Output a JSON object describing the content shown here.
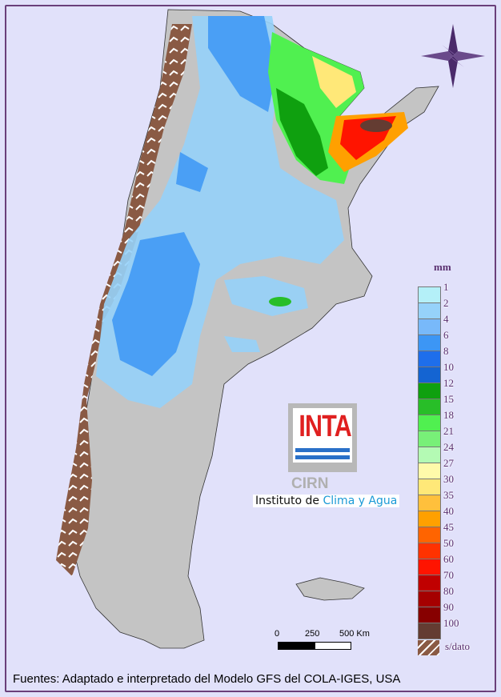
{
  "legend": {
    "unit": "mm",
    "labels": [
      "1",
      "2",
      "4",
      "6",
      "8",
      "10",
      "12",
      "15",
      "18",
      "21",
      "24",
      "27",
      "30",
      "35",
      "40",
      "45",
      "50",
      "60",
      "70",
      "80",
      "90",
      "100"
    ],
    "colors": [
      "#b4f0f8",
      "#96d2fa",
      "#78b9fa",
      "#3c96f5",
      "#1e6eeb",
      "#1464d2",
      "#0fa00f",
      "#28be28",
      "#50f050",
      "#78f078",
      "#b4fab4",
      "#fffaaa",
      "#ffe878",
      "#ffc03c",
      "#ffa000",
      "#ff6400",
      "#ff3200",
      "#ff1400",
      "#c00000",
      "#a50000",
      "#870000",
      "#643c32"
    ],
    "no_data_label": "s/dato",
    "no_data_color": "#8a5a44"
  },
  "logo": {
    "brand": "INTA",
    "sub": "CIRN",
    "institute_prefix": "Instituto de ",
    "institute_highlight": "Clima y Agua"
  },
  "scale_bar": {
    "labels": [
      "0",
      "250",
      "500 Km"
    ]
  },
  "footer": "Fuentes: Adaptado e interpretado del Modelo GFS del COLA-IGES, USA",
  "compass": "compass-rose"
}
